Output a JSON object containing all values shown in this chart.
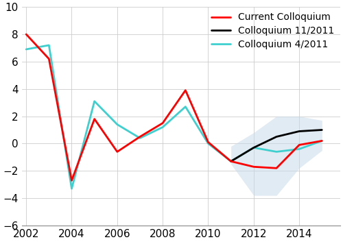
{
  "title": "",
  "ylim": [
    -6,
    10
  ],
  "xlim": [
    2001.8,
    2015.8
  ],
  "yticks": [
    -6,
    -4,
    -2,
    0,
    2,
    4,
    6,
    8,
    10
  ],
  "xticks": [
    2002,
    2004,
    2006,
    2008,
    2010,
    2012,
    2014
  ],
  "red_series": {
    "label": "Current Colloquium",
    "color": "#ff0000",
    "x": [
      2002,
      2003,
      2004,
      2005,
      2006,
      2007,
      2008,
      2009,
      2010,
      2011,
      2012,
      2013,
      2014,
      2015
    ],
    "y": [
      8.0,
      6.2,
      -2.7,
      1.8,
      -0.6,
      0.5,
      1.5,
      3.9,
      0.1,
      -1.3,
      -1.7,
      -1.8,
      -0.1,
      0.2
    ]
  },
  "black_series": {
    "label": "Colloquium 11/2011",
    "color": "#000000",
    "x": [
      2011,
      2012,
      2013,
      2014,
      2015
    ],
    "y": [
      -1.3,
      -0.3,
      0.5,
      0.9,
      1.0
    ]
  },
  "cyan_series": {
    "label": "Colloquium 4/2011",
    "color": "#3ecfcf",
    "x": [
      2002,
      2003,
      2004,
      2005,
      2006,
      2007,
      2008,
      2009,
      2010,
      2011,
      2012,
      2013,
      2014,
      2015
    ],
    "y": [
      6.9,
      7.2,
      -3.3,
      3.1,
      1.4,
      0.4,
      1.2,
      2.7,
      0.0,
      -1.3,
      -0.3,
      -0.6,
      -0.4,
      0.2
    ]
  },
  "shade_upper_x": [
    2011,
    2012,
    2013,
    2014,
    2015
  ],
  "shade_upper_y": [
    -0.2,
    0.8,
    2.0,
    2.0,
    1.7
  ],
  "shade_lower_x": [
    2011,
    2012,
    2013,
    2014,
    2015
  ],
  "shade_lower_y": [
    -1.5,
    -3.8,
    -3.8,
    -1.8,
    -0.5
  ],
  "shade_color": "#c5d8e8",
  "shade_alpha": 0.5,
  "linewidth": 2.0,
  "background_color": "#ffffff",
  "legend_fontsize": 10,
  "tick_fontsize": 11
}
